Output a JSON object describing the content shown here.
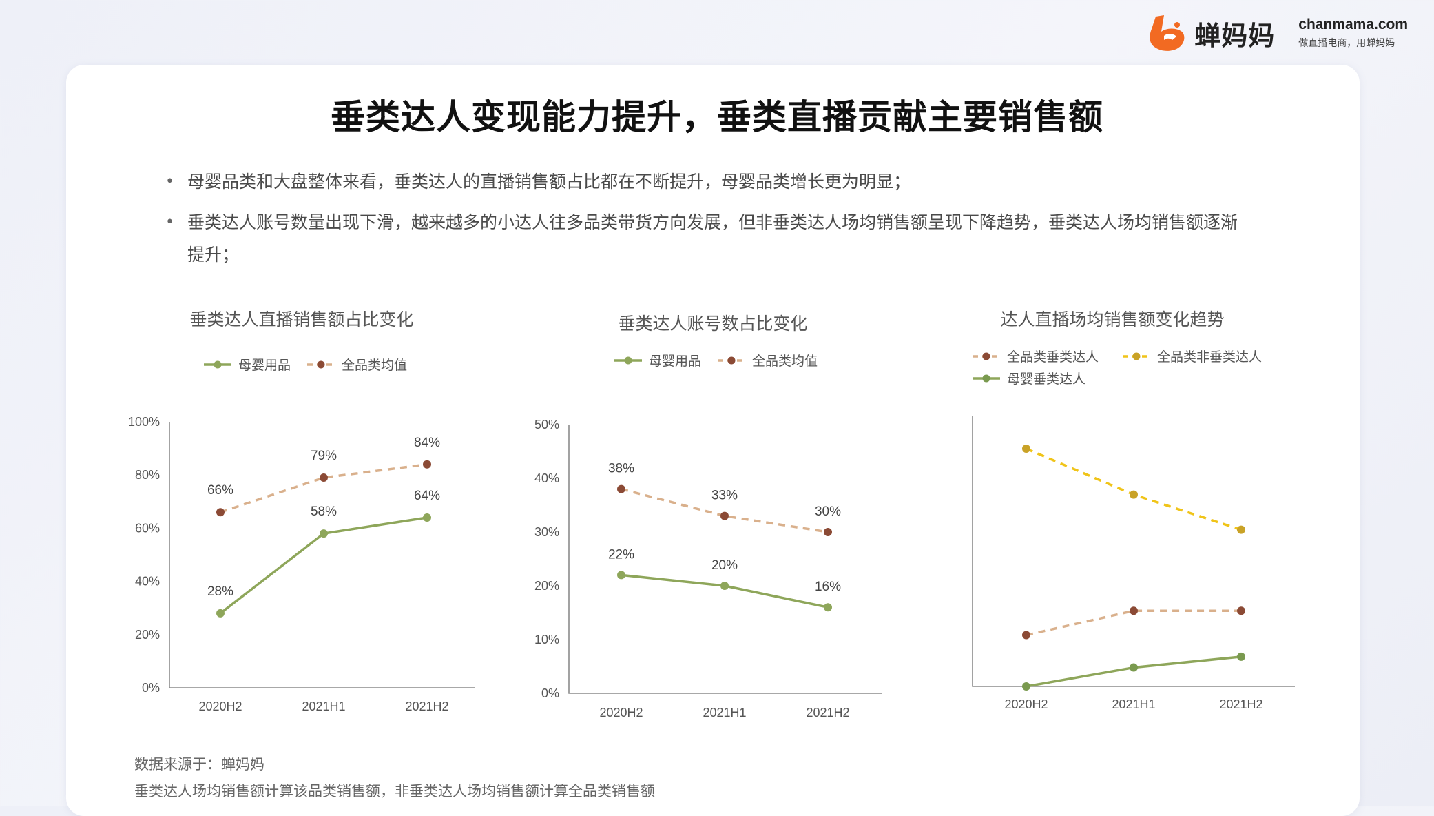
{
  "brand": {
    "name": "蝉妈妈",
    "domain": "chanmama.com",
    "slogan": "做直播电商，用蝉妈妈",
    "color": "#f26a22"
  },
  "title": "垂类达人变现能力提升，垂类直播贡献主要销售额",
  "bullets": [
    "母婴品类和大盘整体来看，垂类达人的直播销售额占比都在不断提升，母婴品类增长更为明显；",
    "垂类达人账号数量出现下滑，越来越多的小达人往多品类带货方向发展，但非垂类达人场均销售额呈现下降趋势，垂类达人场均销售额逐渐提升；"
  ],
  "chart_data": [
    {
      "type": "line",
      "title": "垂类达人直播销售额占比变化",
      "categories": [
        "2020H2",
        "2021H1",
        "2021H2"
      ],
      "ylim": [
        0,
        100
      ],
      "yticks": [
        "0%",
        "20%",
        "40%",
        "60%",
        "80%",
        "100%"
      ],
      "legend_position": "top",
      "series": [
        {
          "name": "母婴用品",
          "values": [
            28,
            58,
            64
          ],
          "labels": [
            "28%",
            "58%",
            "64%"
          ],
          "color": "#8ea65a",
          "line_color": "#8ea65a",
          "dash": false
        },
        {
          "name": "全品类均值",
          "values": [
            66,
            79,
            84
          ],
          "labels": [
            "66%",
            "79%",
            "84%"
          ],
          "color": "#8b4a35",
          "line_color": "#d9b08c",
          "dash": true
        }
      ]
    },
    {
      "type": "line",
      "title": "垂类达人账号数占比变化",
      "categories": [
        "2020H2",
        "2021H1",
        "2021H2"
      ],
      "ylim": [
        0,
        50
      ],
      "yticks": [
        "0%",
        "10%",
        "20%",
        "30%",
        "40%",
        "50%"
      ],
      "legend_position": "top",
      "series": [
        {
          "name": "母婴用品",
          "values": [
            22,
            20,
            16
          ],
          "labels": [
            "22%",
            "20%",
            "16%"
          ],
          "color": "#8ea65a",
          "line_color": "#8ea65a",
          "dash": false
        },
        {
          "name": "全品类均值",
          "values": [
            38,
            33,
            30
          ],
          "labels": [
            "38%",
            "33%",
            "30%"
          ],
          "color": "#8b4a35",
          "line_color": "#d9b08c",
          "dash": true
        }
      ]
    },
    {
      "type": "line",
      "title": "达人直播场均销售额变化趋势",
      "categories": [
        "2020H2",
        "2021H1",
        "2021H2"
      ],
      "ylim": [
        0,
        100
      ],
      "yticks": [],
      "legend_position": "top",
      "series": [
        {
          "name": "全品类垂类达人",
          "values": [
            19,
            28,
            28
          ],
          "color": "#8b4a35",
          "line_color": "#d9b08c",
          "dash": true
        },
        {
          "name": "全品类非垂类达人",
          "values": [
            88,
            71,
            58
          ],
          "color": "#c9a227",
          "line_color": "#f0c419",
          "dash": true
        },
        {
          "name": "母婴垂类达人",
          "values": [
            0,
            7,
            11
          ],
          "color": "#7a9a4f",
          "line_color": "#8ea65a",
          "dash": false
        }
      ]
    }
  ],
  "notes": [
    "数据来源于：蝉妈妈",
    "垂类达人场均销售额计算该品类销售额，非垂类达人场均销售额计算全品类销售额"
  ]
}
